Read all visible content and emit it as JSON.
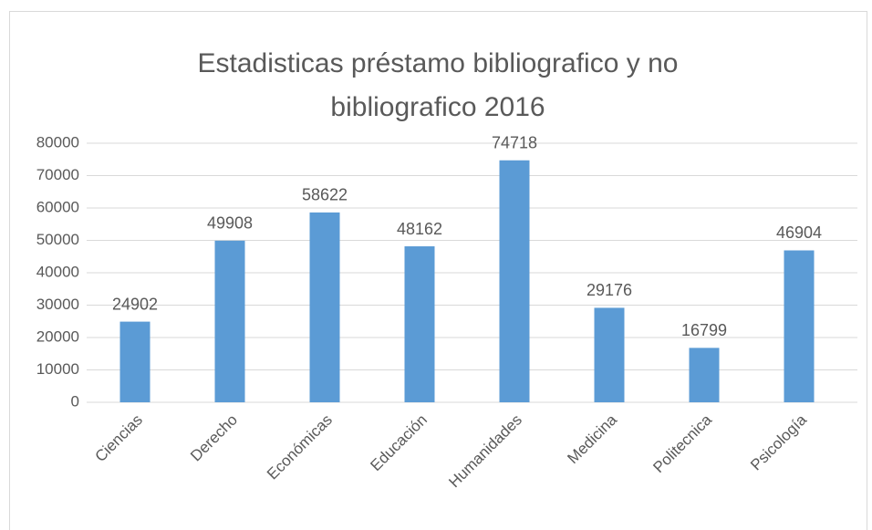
{
  "chart_data": {
    "type": "bar",
    "title": "Estadisticas préstamo bibliografico y no bibliografico 2016",
    "categories": [
      "Ciencias",
      "Derecho",
      "Económicas",
      "Educación",
      "Humanidades",
      "Medicina",
      "Politecnica",
      "Psicología"
    ],
    "values": [
      24902,
      49908,
      58622,
      48162,
      74718,
      29176,
      16799,
      46904
    ],
    "color": "#5b9bd5",
    "ylim": [
      0,
      80000
    ],
    "yticks": [
      0,
      10000,
      20000,
      30000,
      40000,
      50000,
      60000,
      70000,
      80000
    ],
    "grid": true
  }
}
